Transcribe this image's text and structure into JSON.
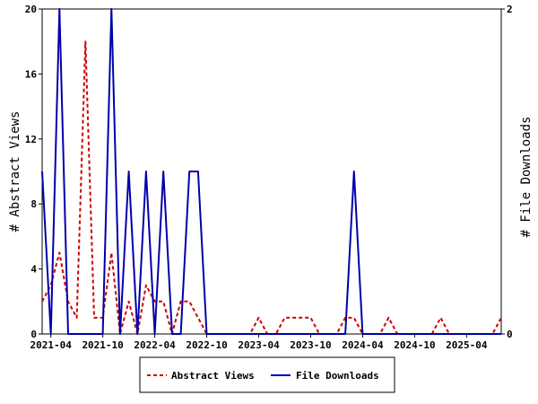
{
  "chart_data": {
    "type": "line",
    "x_tick_labels": [
      "2021-04",
      "2021-10",
      "2022-04",
      "2022-10",
      "2023-04",
      "2023-10",
      "2024-04",
      "2024-10",
      "2025-04"
    ],
    "y_left": {
      "label": "# Abstract Views",
      "ticks": [
        0,
        4,
        8,
        12,
        16,
        20
      ],
      "ylim": [
        0,
        20
      ]
    },
    "y_right": {
      "label": "# File Downloads",
      "ticks": [
        0,
        2
      ],
      "ylim": [
        0,
        2
      ]
    },
    "grid": false,
    "legend_placement": "bottom-center",
    "series": [
      {
        "name": "Abstract Views",
        "axis": "left",
        "color": "#cc0000",
        "style": "dashed",
        "points": [
          [
            "2021-03",
            2
          ],
          [
            "2021-04",
            3
          ],
          [
            "2021-05",
            5
          ],
          [
            "2021-06",
            2
          ],
          [
            "2021-07",
            1
          ],
          [
            "2021-08",
            18
          ],
          [
            "2021-09",
            1
          ],
          [
            "2021-10",
            1
          ],
          [
            "2021-11",
            5
          ],
          [
            "2021-12",
            0
          ],
          [
            "2022-01",
            2
          ],
          [
            "2022-02",
            0
          ],
          [
            "2022-03",
            3
          ],
          [
            "2022-04",
            2
          ],
          [
            "2022-05",
            2
          ],
          [
            "2022-06",
            0
          ],
          [
            "2022-07",
            2
          ],
          [
            "2022-08",
            2
          ],
          [
            "2022-09",
            1
          ],
          [
            "2022-10",
            0
          ],
          [
            "2022-11",
            0
          ],
          [
            "2022-12",
            0
          ],
          [
            "2023-01",
            0
          ],
          [
            "2023-02",
            0
          ],
          [
            "2023-03",
            0
          ],
          [
            "2023-04",
            1
          ],
          [
            "2023-05",
            0
          ],
          [
            "2023-06",
            0
          ],
          [
            "2023-07",
            1
          ],
          [
            "2023-08",
            1
          ],
          [
            "2023-09",
            1
          ],
          [
            "2023-10",
            1
          ],
          [
            "2023-11",
            0
          ],
          [
            "2023-12",
            0
          ],
          [
            "2024-01",
            0
          ],
          [
            "2024-02",
            1
          ],
          [
            "2024-03",
            1
          ],
          [
            "2024-04",
            0
          ],
          [
            "2024-05",
            0
          ],
          [
            "2024-06",
            0
          ],
          [
            "2024-07",
            1
          ],
          [
            "2024-08",
            0
          ],
          [
            "2024-09",
            0
          ],
          [
            "2024-10",
            0
          ],
          [
            "2024-11",
            0
          ],
          [
            "2024-12",
            0
          ],
          [
            "2025-01",
            1
          ],
          [
            "2025-02",
            0
          ],
          [
            "2025-03",
            0
          ],
          [
            "2025-04",
            0
          ],
          [
            "2025-05",
            0
          ],
          [
            "2025-06",
            0
          ],
          [
            "2025-07",
            0
          ],
          [
            "2025-08",
            1
          ]
        ]
      },
      {
        "name": "File Downloads",
        "axis": "right",
        "color": "#0000aa",
        "style": "solid",
        "points": [
          [
            "2021-03",
            1
          ],
          [
            "2021-04",
            0
          ],
          [
            "2021-05",
            2
          ],
          [
            "2021-06",
            0
          ],
          [
            "2021-07",
            0
          ],
          [
            "2021-08",
            0
          ],
          [
            "2021-09",
            0
          ],
          [
            "2021-10",
            0
          ],
          [
            "2021-11",
            2
          ],
          [
            "2021-12",
            0
          ],
          [
            "2022-01",
            1
          ],
          [
            "2022-02",
            0
          ],
          [
            "2022-03",
            1
          ],
          [
            "2022-04",
            0
          ],
          [
            "2022-05",
            1
          ],
          [
            "2022-06",
            0
          ],
          [
            "2022-07",
            0
          ],
          [
            "2022-08",
            1
          ],
          [
            "2022-09",
            1
          ],
          [
            "2022-10",
            0
          ],
          [
            "2022-11",
            0
          ],
          [
            "2022-12",
            0
          ],
          [
            "2023-01",
            0
          ],
          [
            "2023-02",
            0
          ],
          [
            "2023-03",
            0
          ],
          [
            "2023-04",
            0
          ],
          [
            "2023-05",
            0
          ],
          [
            "2023-06",
            0
          ],
          [
            "2023-07",
            0
          ],
          [
            "2023-08",
            0
          ],
          [
            "2023-09",
            0
          ],
          [
            "2023-10",
            0
          ],
          [
            "2023-11",
            0
          ],
          [
            "2023-12",
            0
          ],
          [
            "2024-01",
            0
          ],
          [
            "2024-02",
            0
          ],
          [
            "2024-03",
            1
          ],
          [
            "2024-04",
            0
          ],
          [
            "2024-05",
            0
          ],
          [
            "2024-06",
            0
          ],
          [
            "2024-07",
            0
          ],
          [
            "2024-08",
            0
          ],
          [
            "2024-09",
            0
          ],
          [
            "2024-10",
            0
          ],
          [
            "2024-11",
            0
          ],
          [
            "2024-12",
            0
          ],
          [
            "2025-01",
            0
          ],
          [
            "2025-02",
            0
          ],
          [
            "2025-03",
            0
          ],
          [
            "2025-04",
            0
          ],
          [
            "2025-05",
            0
          ],
          [
            "2025-06",
            0
          ],
          [
            "2025-07",
            0
          ],
          [
            "2025-08",
            0
          ]
        ]
      }
    ]
  }
}
